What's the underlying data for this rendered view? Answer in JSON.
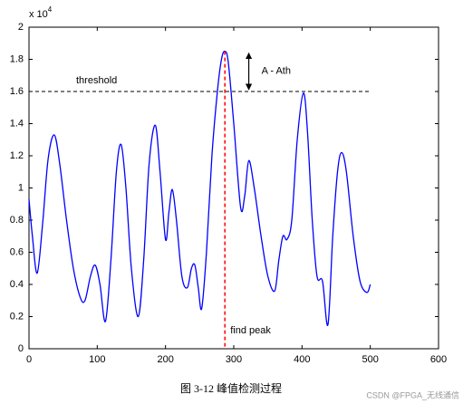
{
  "chart_data": {
    "type": "line",
    "caption": "图 3-12  峰值检测过程",
    "watermark": "CSDN @FPGA_无线通信",
    "y_scale_label": {
      "base": "x 10",
      "exponent": "4"
    },
    "xlim": [
      0,
      600
    ],
    "xticks": [
      0,
      100,
      200,
      300,
      400,
      500,
      600
    ],
    "ylim": [
      0,
      2
    ],
    "yticks": [
      0,
      0.2,
      0.4,
      0.6,
      0.8,
      1,
      1.2,
      1.4,
      1.6,
      1.8,
      2
    ],
    "series": [
      {
        "color": "#0000ff",
        "x": [
          0,
          5,
          12,
          20,
          28,
          37,
          45,
          55,
          65,
          75,
          82,
          90,
          97,
          104,
          112,
          120,
          128,
          135,
          142,
          150,
          160,
          168,
          176,
          185,
          192,
          200,
          205,
          210,
          216,
          224,
          232,
          238,
          243,
          248,
          253,
          260,
          268,
          276,
          282,
          287,
          292,
          300,
          310,
          316,
          322,
          330,
          340,
          350,
          360,
          366,
          372,
          378,
          385,
          393,
          402,
          408,
          415,
          422,
          430,
          438,
          445,
          452,
          458,
          465,
          475,
          485,
          495,
          500
        ],
        "values": [
          0.93,
          0.7,
          0.47,
          0.78,
          1.18,
          1.33,
          1.15,
          0.8,
          0.5,
          0.32,
          0.3,
          0.45,
          0.52,
          0.4,
          0.17,
          0.55,
          1.1,
          1.27,
          1.0,
          0.5,
          0.2,
          0.55,
          1.15,
          1.39,
          1.1,
          0.68,
          0.85,
          0.99,
          0.8,
          0.45,
          0.38,
          0.5,
          0.52,
          0.38,
          0.25,
          0.6,
          1.2,
          1.6,
          1.8,
          1.85,
          1.78,
          1.4,
          0.88,
          0.95,
          1.17,
          1.0,
          0.7,
          0.45,
          0.36,
          0.55,
          0.7,
          0.68,
          0.8,
          1.3,
          1.59,
          1.35,
          0.8,
          0.45,
          0.42,
          0.15,
          0.7,
          1.1,
          1.22,
          1.1,
          0.7,
          0.42,
          0.35,
          0.4
        ]
      }
    ],
    "threshold": {
      "label": "threshold",
      "value": 1.6,
      "xlim": [
        0,
        500
      ]
    },
    "peak": {
      "label": "find peak",
      "x": 287,
      "y": 1.85,
      "color": "#ff0000"
    },
    "difference": {
      "label": "A - Ath",
      "x": 322,
      "from": 1.6,
      "to": 1.85
    }
  }
}
